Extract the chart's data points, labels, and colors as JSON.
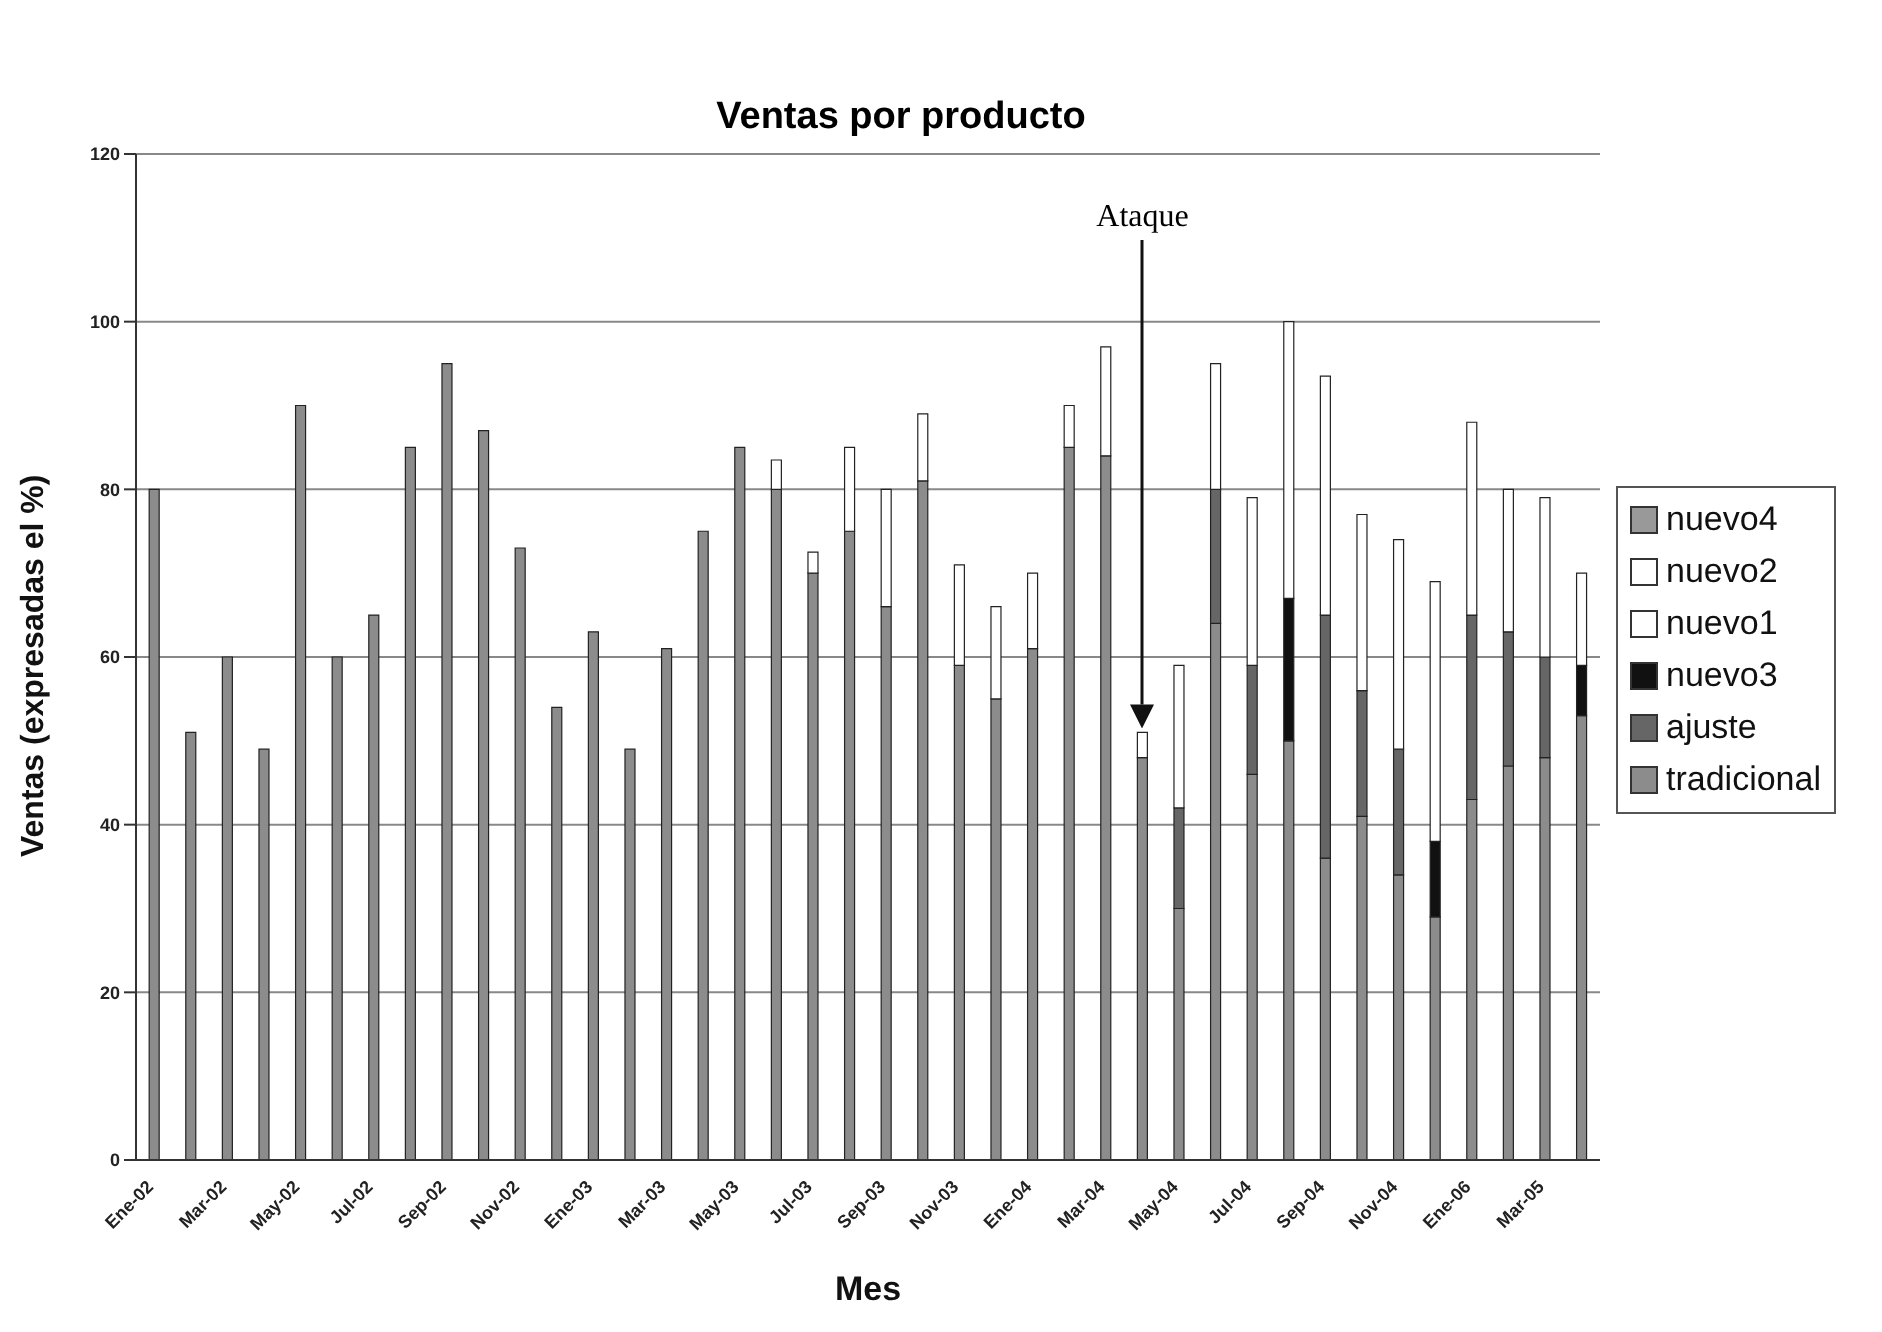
{
  "chart_data": {
    "type": "bar",
    "stacked": true,
    "title": "Ventas por producto",
    "xlabel": "Mes",
    "ylabel": "Ventas (expresadas el %)",
    "categories": [
      "Ene-02",
      null,
      "Mar-02",
      null,
      "May-02",
      null,
      "Jul-02",
      null,
      "Sep-02",
      null,
      "Nov-02",
      null,
      "Ene-03",
      null,
      "Mar-03",
      null,
      "May-03",
      null,
      "Jul-03",
      null,
      "Sep-03",
      null,
      "Nov-03",
      null,
      "Ene-04",
      null,
      "Mar-04",
      null,
      "May-04",
      null,
      "Jul-04",
      null,
      "Sep-04",
      null,
      "Nov-04",
      null,
      "Ene-06",
      null,
      "Mar-05",
      null
    ],
    "series": [
      {
        "name": "tradicional",
        "color": "#8c8c8c",
        "values": [
          80,
          51,
          60,
          49,
          90,
          60,
          65,
          85,
          95,
          87,
          73,
          54,
          63,
          49,
          61,
          75,
          85,
          80,
          70,
          75,
          66,
          81,
          59,
          55,
          61,
          85,
          84,
          48,
          30,
          64,
          46,
          50,
          36,
          41,
          34,
          29,
          43,
          47,
          48,
          53
        ]
      },
      {
        "name": "ajuste",
        "color": "#666666",
        "values": [
          0,
          0,
          0,
          0,
          0,
          0,
          0,
          0,
          0,
          0,
          0,
          0,
          0,
          0,
          0,
          0,
          0,
          0,
          0,
          0,
          0,
          0,
          0,
          0,
          0,
          0,
          0,
          0,
          12,
          16,
          13,
          0,
          29,
          15,
          15,
          0,
          22,
          16,
          12,
          0
        ]
      },
      {
        "name": "nuevo3",
        "color": "#111111",
        "values": [
          0,
          0,
          0,
          0,
          0,
          0,
          0,
          0,
          0,
          0,
          0,
          0,
          0,
          0,
          0,
          0,
          0,
          0,
          0,
          0,
          0,
          0,
          0,
          0,
          0,
          0,
          0,
          0,
          0,
          0,
          0,
          17,
          0,
          0,
          0,
          9,
          0,
          0,
          0,
          6
        ]
      },
      {
        "name": "nuevo1",
        "color": "#ffffff",
        "values": [
          0,
          0,
          0,
          0,
          0,
          0,
          0,
          0,
          0,
          0,
          0,
          0,
          0,
          0,
          0,
          0,
          0,
          3.5,
          2.5,
          10,
          14,
          8,
          12,
          11,
          9,
          5,
          13,
          3,
          17,
          15,
          20,
          33,
          28.5,
          21,
          25,
          31,
          23,
          17,
          19,
          11
        ]
      },
      {
        "name": "nuevo2",
        "color": "#ffffff",
        "values": [
          0,
          0,
          0,
          0,
          0,
          0,
          0,
          0,
          0,
          0,
          0,
          0,
          0,
          0,
          0,
          0,
          0,
          0,
          0,
          0,
          0,
          0,
          0,
          0,
          0,
          0,
          0,
          0,
          0,
          0,
          0,
          0,
          0,
          0,
          0,
          0,
          0,
          0,
          0,
          0
        ]
      },
      {
        "name": "nuevo4",
        "color": "#999999",
        "values": [
          0,
          0,
          0,
          0,
          0,
          0,
          0,
          0,
          0,
          0,
          0,
          0,
          0,
          0,
          0,
          0,
          0,
          0,
          0,
          0,
          0,
          0,
          0,
          0,
          0,
          0,
          0,
          0,
          0,
          0,
          0,
          0,
          0,
          0,
          0,
          0,
          0,
          0,
          0,
          0
        ]
      }
    ],
    "ylim": [
      0,
      120
    ],
    "yticks": [
      0,
      20,
      40,
      60,
      80,
      100,
      120
    ],
    "grid": "y",
    "legend": "right",
    "annotations": [
      "Ataque"
    ]
  }
}
